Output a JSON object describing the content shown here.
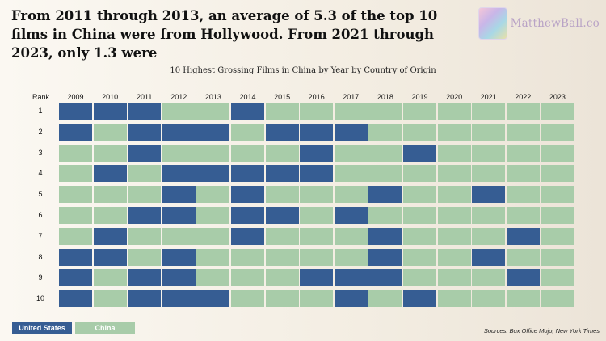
{
  "headline": "From 2011 through 2013, an average of 5.3 of the top 10 films in China were from Hollywood. From 2021 through 2023, only 1.3 were",
  "logo": {
    "text": "MatthewBall.co",
    "icon": "matthewball-logo-mark"
  },
  "source": "Sources: Box Office Mojo, New York Times",
  "colors": {
    "united_states": "#365d93",
    "china": "#a8cca9"
  },
  "chart_data": {
    "type": "heatmap",
    "title": "10 Highest Grossing Films in China by Year by Country of Origin",
    "row_header": "Rank",
    "x": [
      "2009",
      "2010",
      "2011",
      "2012",
      "2013",
      "2014",
      "2015",
      "2016",
      "2017",
      "2018",
      "2019",
      "2020",
      "2021",
      "2022",
      "2023"
    ],
    "y": [
      "1",
      "2",
      "3",
      "4",
      "5",
      "6",
      "7",
      "8",
      "9",
      "10"
    ],
    "legend": [
      {
        "label": "United States",
        "code": "US"
      },
      {
        "label": "China",
        "code": "CN"
      }
    ],
    "values": [
      [
        "US",
        "US",
        "US",
        "CN",
        "CN",
        "US",
        "CN",
        "CN",
        "CN",
        "CN",
        "CN",
        "CN",
        "CN",
        "CN",
        "CN"
      ],
      [
        "US",
        "CN",
        "US",
        "US",
        "US",
        "CN",
        "US",
        "US",
        "US",
        "CN",
        "CN",
        "CN",
        "CN",
        "CN",
        "CN"
      ],
      [
        "CN",
        "CN",
        "US",
        "CN",
        "CN",
        "CN",
        "CN",
        "US",
        "CN",
        "CN",
        "US",
        "CN",
        "CN",
        "CN",
        "CN"
      ],
      [
        "CN",
        "US",
        "CN",
        "US",
        "US",
        "US",
        "US",
        "US",
        "CN",
        "CN",
        "CN",
        "CN",
        "CN",
        "CN",
        "CN"
      ],
      [
        "CN",
        "CN",
        "CN",
        "US",
        "CN",
        "US",
        "CN",
        "CN",
        "CN",
        "US",
        "CN",
        "CN",
        "US",
        "CN",
        "CN"
      ],
      [
        "CN",
        "CN",
        "US",
        "US",
        "CN",
        "US",
        "US",
        "CN",
        "US",
        "CN",
        "CN",
        "CN",
        "CN",
        "CN",
        "CN"
      ],
      [
        "CN",
        "US",
        "CN",
        "CN",
        "CN",
        "US",
        "CN",
        "CN",
        "CN",
        "US",
        "CN",
        "CN",
        "CN",
        "US",
        "CN"
      ],
      [
        "US",
        "US",
        "CN",
        "US",
        "CN",
        "CN",
        "CN",
        "CN",
        "CN",
        "US",
        "CN",
        "CN",
        "US",
        "CN",
        "CN"
      ],
      [
        "US",
        "CN",
        "US",
        "US",
        "CN",
        "CN",
        "CN",
        "US",
        "US",
        "US",
        "CN",
        "CN",
        "CN",
        "US",
        "CN"
      ],
      [
        "US",
        "CN",
        "US",
        "US",
        "US",
        "CN",
        "CN",
        "CN",
        "US",
        "CN",
        "US",
        "CN",
        "CN",
        "CN",
        "CN"
      ]
    ]
  }
}
